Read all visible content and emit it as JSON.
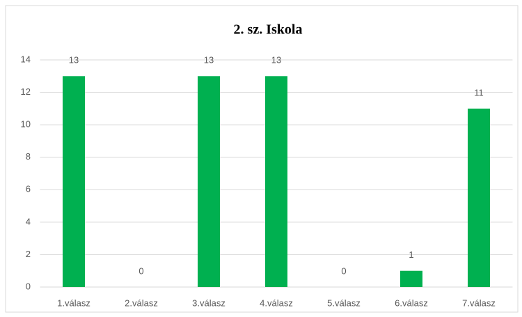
{
  "chart_data": {
    "type": "bar",
    "title": "2. sz. Iskola",
    "categories": [
      "1.válasz",
      "2.válasz",
      "3.válasz",
      "4.válasz",
      "5.válasz",
      "6.válasz",
      "7.válasz"
    ],
    "values": [
      13,
      0,
      13,
      13,
      0,
      1,
      11
    ],
    "color": "#00b050",
    "ylim": [
      0,
      14
    ],
    "yticks": [
      0,
      2,
      4,
      6,
      8,
      10,
      12,
      14
    ],
    "grid": true,
    "data_labels": true
  }
}
